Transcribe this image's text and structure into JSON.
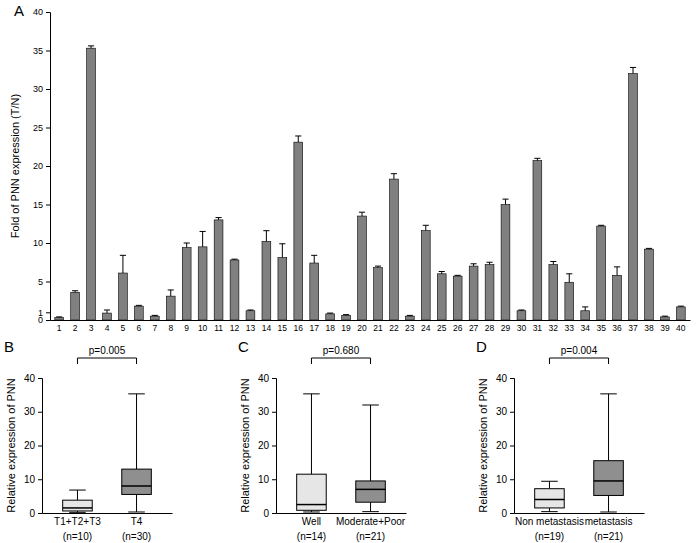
{
  "chart_data": [
    {
      "type": "bar",
      "panel_label": "A",
      "y_label": "Fold of PNN expression (T/N)",
      "categories": [
        "1",
        "2",
        "3",
        "4",
        "5",
        "6",
        "7",
        "8",
        "9",
        "10",
        "11",
        "12",
        "13",
        "14",
        "15",
        "16",
        "17",
        "18",
        "19",
        "20",
        "21",
        "22",
        "23",
        "24",
        "25",
        "26",
        "27",
        "28",
        "29",
        "30",
        "31",
        "32",
        "33",
        "34",
        "35",
        "36",
        "37",
        "38",
        "39",
        "40"
      ],
      "values": [
        0.3,
        3.6,
        35.3,
        0.9,
        6.1,
        1.8,
        0.5,
        3.1,
        9.4,
        9.5,
        13.0,
        7.8,
        1.2,
        10.2,
        8.1,
        23.1,
        7.4,
        0.8,
        0.6,
        13.5,
        6.8,
        18.3,
        0.5,
        11.6,
        6.0,
        5.7,
        7.0,
        7.2,
        15.0,
        1.2,
        20.7,
        7.2,
        4.9,
        1.2,
        12.2,
        5.8,
        32.0,
        9.2,
        0.4,
        1.7
      ],
      "error": [
        0.1,
        0.2,
        0.3,
        0.4,
        2.3,
        0.1,
        0.1,
        0.8,
        0.6,
        2.0,
        0.3,
        0.1,
        0.1,
        1.4,
        1.8,
        0.8,
        1.0,
        0.1,
        0.1,
        0.5,
        0.2,
        0.7,
        0.1,
        0.7,
        0.3,
        0.1,
        0.3,
        0.3,
        0.7,
        0.1,
        0.3,
        0.4,
        1.1,
        0.5,
        0.1,
        1.1,
        0.8,
        0.1,
        0.1,
        0.1
      ],
      "color": "#808080",
      "ylim": [
        0,
        40
      ],
      "yticks": [
        0,
        1,
        5,
        10,
        15,
        20,
        25,
        30,
        35,
        40
      ]
    },
    {
      "type": "box",
      "panel_label": "B",
      "y_label": "Relative expression of PNN",
      "categories": [
        "T1+T2+T3",
        "T4"
      ],
      "sample_labels": [
        "(n=10)",
        "(n=30)"
      ],
      "stats": {
        "min": [
          0.2,
          0.3
        ],
        "q1": [
          0.6,
          5.5
        ],
        "median": [
          1.5,
          8.0
        ],
        "q3": [
          3.8,
          13.0
        ],
        "max": [
          6.8,
          35.3
        ]
      },
      "colors": [
        "#e6e6e6",
        "#8f8f8f"
      ],
      "p_value_label": "p=0.005",
      "ylim": [
        0,
        40
      ],
      "yticks": [
        0,
        10,
        20,
        30,
        40
      ]
    },
    {
      "type": "box",
      "panel_label": "C",
      "y_label": "Relative expression of PNN",
      "categories": [
        "Well",
        "Moderate+Poor"
      ],
      "sample_labels": [
        "(n=14)",
        "(n=21)"
      ],
      "stats": {
        "min": [
          0.3,
          0.4
        ],
        "q1": [
          0.8,
          3.2
        ],
        "median": [
          2.5,
          7.0
        ],
        "q3": [
          11.5,
          9.5
        ],
        "max": [
          35.3,
          32.0
        ]
      },
      "colors": [
        "#e6e6e6",
        "#8f8f8f"
      ],
      "p_value_label": "p=0.680",
      "ylim": [
        0,
        40
      ],
      "yticks": [
        0,
        10,
        20,
        30,
        40
      ]
    },
    {
      "type": "box",
      "panel_label": "D",
      "y_label": "Relative expression of PNN",
      "categories": [
        "Non metastasis",
        "metastasis"
      ],
      "sample_labels": [
        "(n=19)",
        "(n=21)"
      ],
      "stats": {
        "min": [
          0.4,
          0.3
        ],
        "q1": [
          1.5,
          5.2
        ],
        "median": [
          4.0,
          9.5
        ],
        "q3": [
          7.2,
          15.5
        ],
        "max": [
          9.4,
          35.3
        ]
      },
      "colors": [
        "#e6e6e6",
        "#8f8f8f"
      ],
      "p_value_label": "p=0.004",
      "ylim": [
        0,
        40
      ],
      "yticks": [
        0,
        10,
        20,
        30,
        40
      ]
    }
  ]
}
